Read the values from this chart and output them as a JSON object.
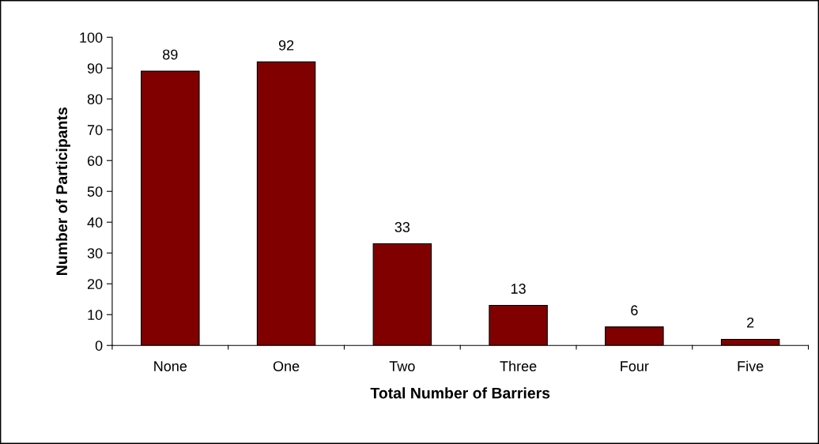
{
  "chart_data": {
    "type": "bar",
    "xlabel": "Total Number of Barriers",
    "ylabel": "Number of Participants",
    "categories": [
      "None",
      "One",
      "Two",
      "Three",
      "Four",
      "Five"
    ],
    "values": [
      89,
      92,
      33,
      13,
      6,
      2
    ],
    "color": "#800000",
    "ylim": [
      0,
      100
    ],
    "yticks": [
      0,
      10,
      20,
      30,
      40,
      50,
      60,
      70,
      80,
      90,
      100
    ],
    "data_labels": true,
    "grid": false,
    "legend": false
  }
}
